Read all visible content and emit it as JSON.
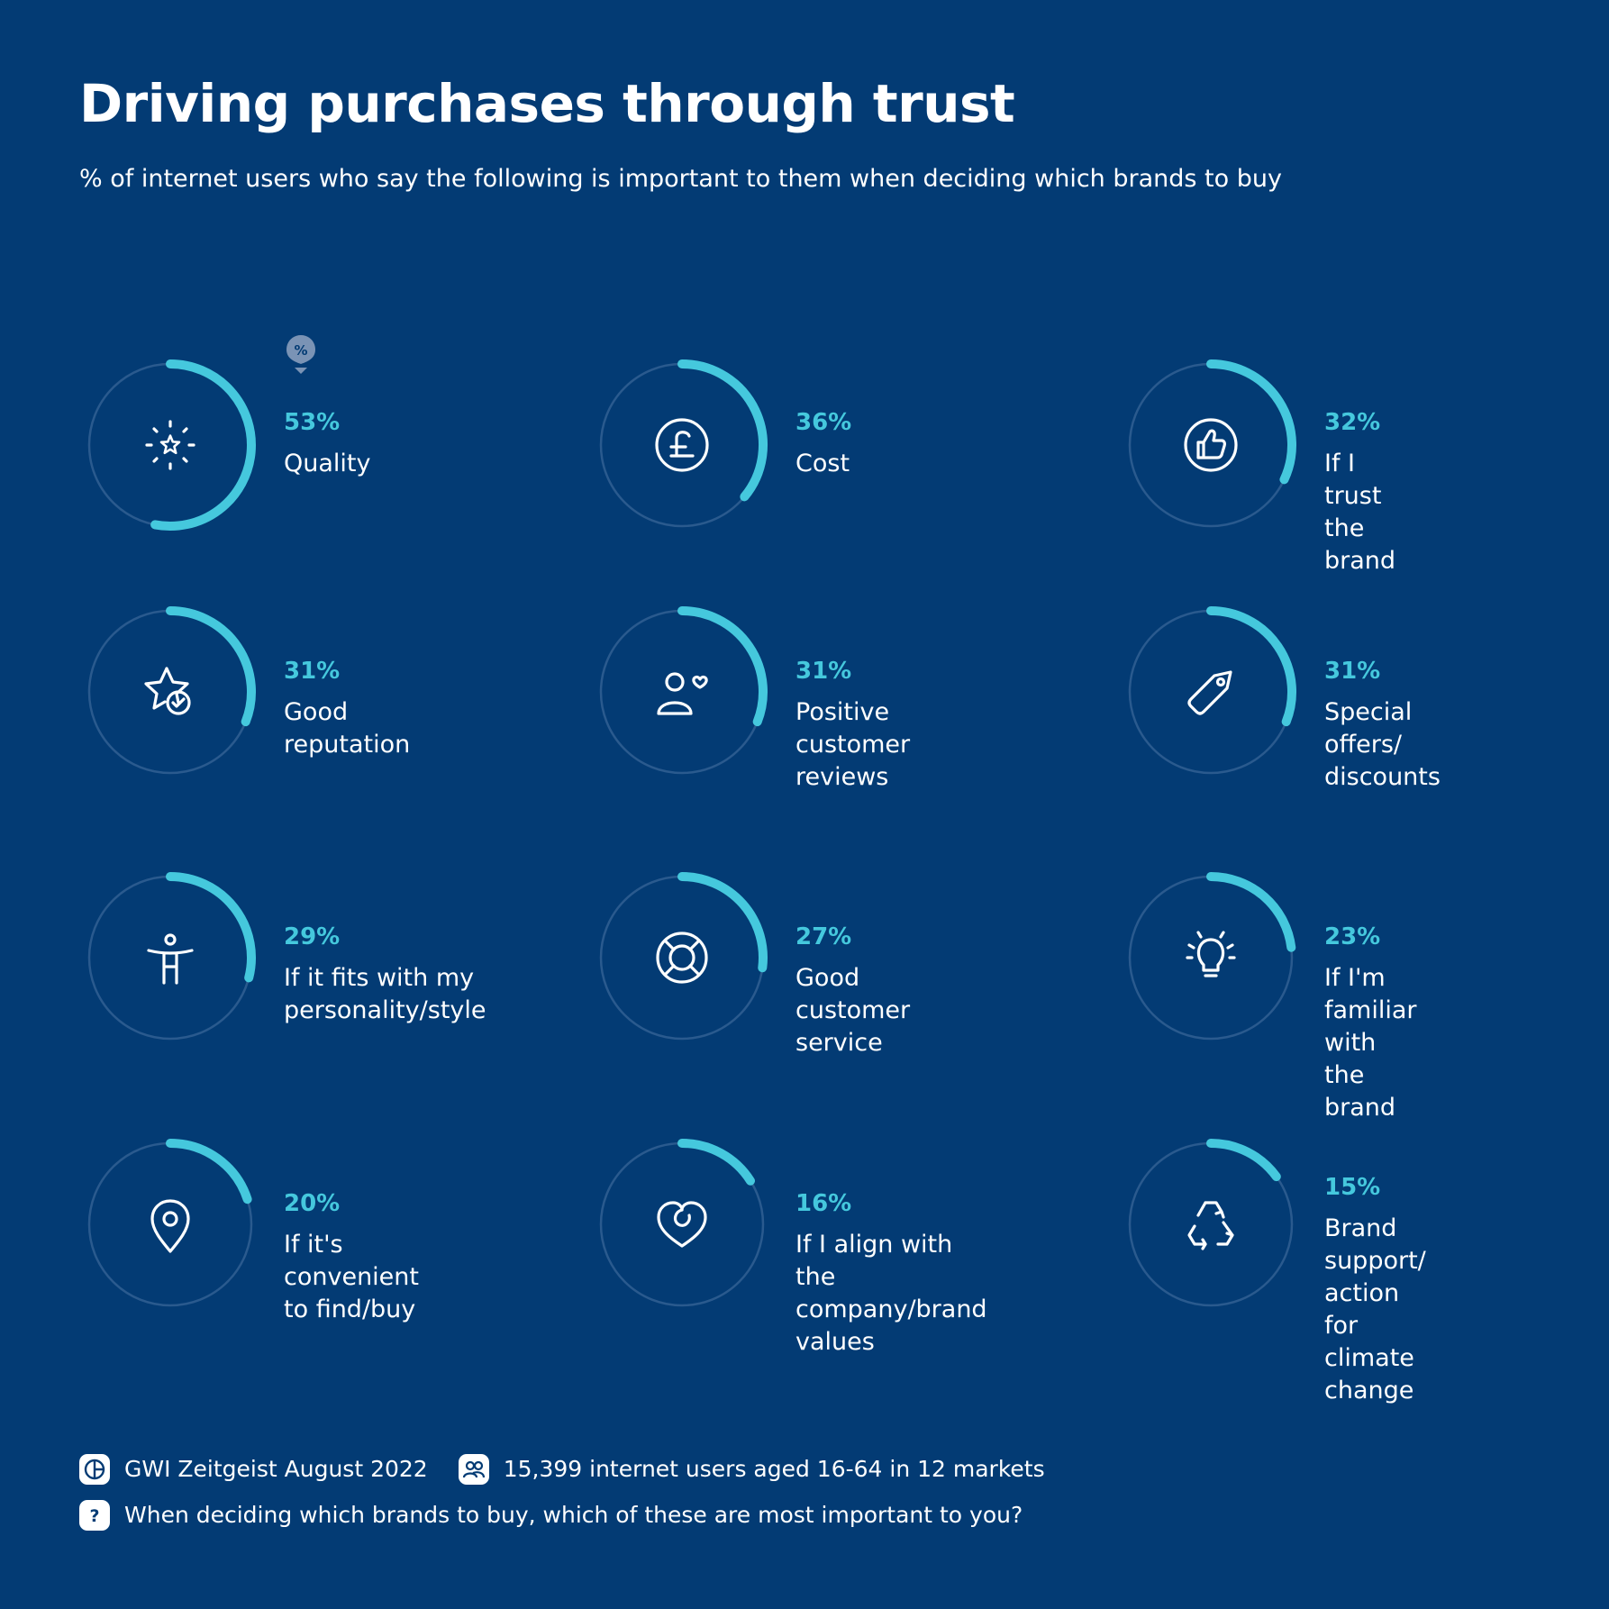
{
  "title": "Driving purchases through trust",
  "subtitle": "% of internet users who say the following is important to them when deciding which brands to buy",
  "marker": {
    "label": "%"
  },
  "colors": {
    "background": "#033b74",
    "accent": "#45c8dd",
    "track": "#2a5a8e",
    "text": "#ffffff"
  },
  "chart_data": {
    "type": "radial-progress",
    "title": "Driving purchases through trust",
    "subtitle": "% of internet users who say the following is important to them when deciding which brands to buy",
    "unit": "%",
    "categories": [
      "Quality",
      "Cost",
      "If I trust the brand",
      "Good reputation",
      "Positive customer reviews",
      "Special offers/ discounts",
      "If it fits with my personality/style",
      "Good customer service",
      "If I'm familiar with the brand",
      "If it's convenient to find/buy",
      "If I align with the company/brand values",
      "Brand support/ action for climate change"
    ],
    "values": [
      53,
      36,
      32,
      31,
      31,
      31,
      29,
      27,
      23,
      20,
      16,
      15
    ]
  },
  "items": [
    {
      "pct": "53%",
      "label": "Quality",
      "icon": "sparkle-star-icon"
    },
    {
      "pct": "36%",
      "label": "Cost",
      "icon": "pound-coin-icon"
    },
    {
      "pct": "32%",
      "label": "If I trust\nthe brand",
      "icon": "thumbs-up-icon"
    },
    {
      "pct": "31%",
      "label": "Good reputation",
      "icon": "star-check-icon"
    },
    {
      "pct": "31%",
      "label": "Positive\ncustomer reviews",
      "icon": "person-heart-icon"
    },
    {
      "pct": "31%",
      "label": "Special offers/\ndiscounts",
      "icon": "price-tag-icon"
    },
    {
      "pct": "29%",
      "label": "If it fits with my\npersonality/style",
      "icon": "person-arms-icon"
    },
    {
      "pct": "27%",
      "label": "Good customer\nservice",
      "icon": "lifebuoy-icon"
    },
    {
      "pct": "23%",
      "label": "If I'm familiar\nwith the brand",
      "icon": "lightbulb-icon"
    },
    {
      "pct": "20%",
      "label": "If it's convenient\nto find/buy",
      "icon": "map-pin-icon"
    },
    {
      "pct": "16%",
      "label": "If I align with the\ncompany/brand\nvalues",
      "icon": "heart-icon"
    },
    {
      "pct": "15%",
      "label": "Brand support/\naction for\nclimate change",
      "icon": "recycle-icon"
    }
  ],
  "footer": {
    "source": "GWI Zeitgeist August 2022",
    "sample": "15,399 internet users aged 16-64 in 12 markets",
    "question": "When deciding which brands to buy, which of these are most important to you?",
    "source_icon": "gwi-logo-icon",
    "sample_icon": "users-icon",
    "question_icon": "question-icon"
  }
}
